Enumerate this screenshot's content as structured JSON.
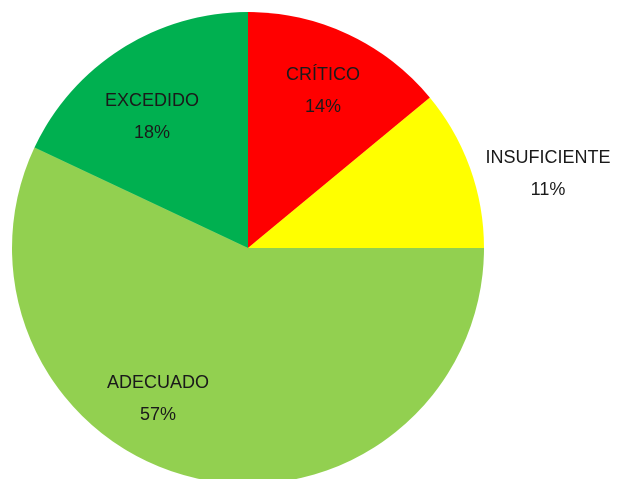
{
  "chart_data": {
    "type": "pie",
    "categories": [
      "CRÍTICO",
      "INSUFICIENTE",
      "ADECUADO",
      "EXCEDIDO"
    ],
    "values": [
      14,
      11,
      57,
      18
    ],
    "value_labels": [
      "14%",
      "11%",
      "57%",
      "18%"
    ],
    "colors": [
      "#ff0000",
      "#ffff00",
      "#92d050",
      "#00b050"
    ]
  }
}
